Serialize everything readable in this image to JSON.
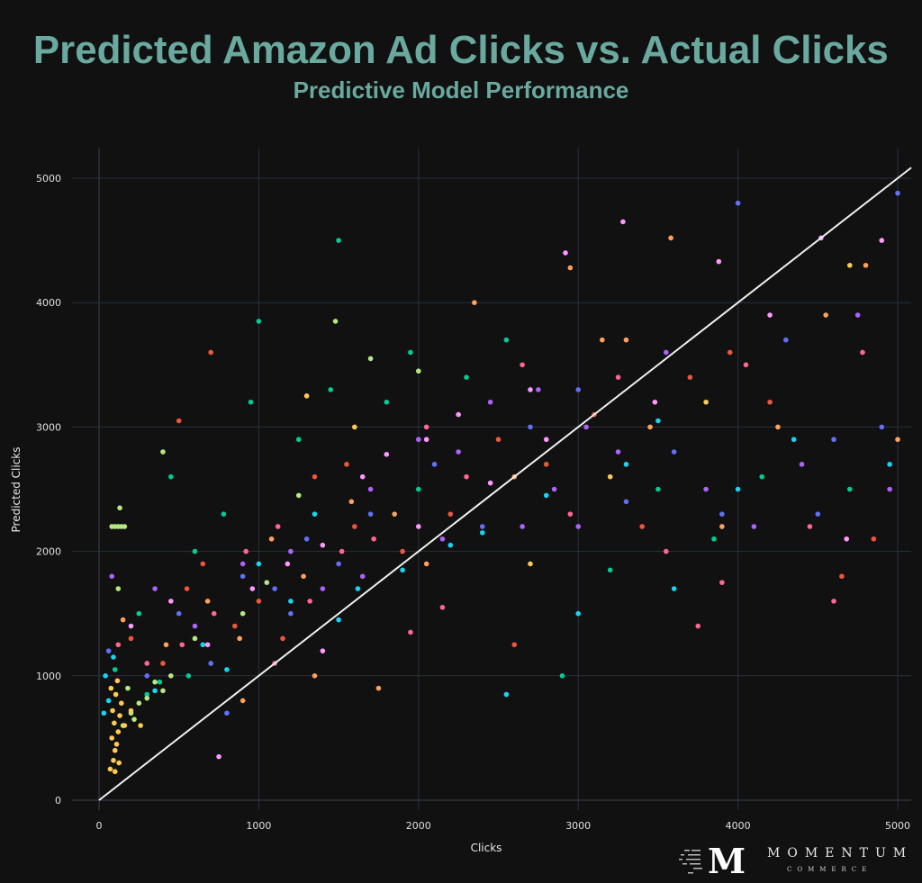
{
  "chart_data": {
    "type": "scatter",
    "title": "Predicted Amazon Ad Clicks vs. Actual Clicks",
    "subtitle": "Predictive Model Performance",
    "xlabel": "Clicks",
    "ylabel": "Predicted Clicks",
    "xlim": [
      -170,
      5085
    ],
    "ylim": [
      -80,
      5240
    ],
    "xticks": [
      "0",
      "1000",
      "2000",
      "3000",
      "4000",
      "5000"
    ],
    "yticks": [
      "0",
      "1000",
      "2000",
      "3000",
      "4000",
      "5000"
    ],
    "grid": true,
    "legend": "none",
    "reference_line": {
      "name": "y = x",
      "color": "#f0f0f0",
      "from": [
        0,
        0
      ],
      "to": [
        5085,
        5085
      ]
    },
    "series": [
      {
        "name": "series-1",
        "color": "#636efa",
        "points": [
          [
            60,
            1200
          ],
          [
            300,
            1000
          ],
          [
            500,
            1500
          ],
          [
            700,
            1100
          ],
          [
            900,
            1800
          ],
          [
            1100,
            1700
          ],
          [
            1300,
            2100
          ],
          [
            1500,
            1900
          ],
          [
            1700,
            2300
          ],
          [
            2100,
            2700
          ],
          [
            2400,
            2200
          ],
          [
            2700,
            3000
          ],
          [
            3000,
            3300
          ],
          [
            3300,
            2400
          ],
          [
            3600,
            2800
          ],
          [
            3900,
            2300
          ],
          [
            4000,
            4800
          ],
          [
            4300,
            3700
          ],
          [
            4600,
            2900
          ],
          [
            4900,
            3000
          ],
          [
            5000,
            4880
          ],
          [
            4500,
            2300
          ],
          [
            1200,
            1500
          ],
          [
            800,
            700
          ]
        ]
      },
      {
        "name": "series-2",
        "color": "#EF553B",
        "points": [
          [
            200,
            1300
          ],
          [
            400,
            1100
          ],
          [
            550,
            1700
          ],
          [
            650,
            1900
          ],
          [
            850,
            1400
          ],
          [
            1000,
            1600
          ],
          [
            1150,
            1300
          ],
          [
            1350,
            2600
          ],
          [
            1600,
            2200
          ],
          [
            1900,
            2000
          ],
          [
            2200,
            2300
          ],
          [
            2500,
            2900
          ],
          [
            2800,
            2700
          ],
          [
            3100,
            3100
          ],
          [
            3400,
            2200
          ],
          [
            3700,
            3400
          ],
          [
            3950,
            3600
          ],
          [
            4200,
            3200
          ],
          [
            4650,
            1800
          ],
          [
            4850,
            2100
          ],
          [
            700,
            3600
          ],
          [
            500,
            3050
          ],
          [
            1550,
            2700
          ],
          [
            2600,
            1250
          ]
        ]
      },
      {
        "name": "series-3",
        "color": "#00cc96",
        "points": [
          [
            100,
            1050
          ],
          [
            250,
            1500
          ],
          [
            450,
            2600
          ],
          [
            600,
            2000
          ],
          [
            780,
            2300
          ],
          [
            950,
            3200
          ],
          [
            1000,
            3850
          ],
          [
            1250,
            2900
          ],
          [
            1450,
            3300
          ],
          [
            1500,
            4500
          ],
          [
            1800,
            3200
          ],
          [
            2000,
            2500
          ],
          [
            2300,
            3400
          ],
          [
            2550,
            3700
          ],
          [
            2900,
            1000
          ],
          [
            3200,
            1850
          ],
          [
            3500,
            2500
          ],
          [
            3850,
            2100
          ],
          [
            4150,
            2600
          ],
          [
            4700,
            2500
          ],
          [
            380,
            950
          ],
          [
            300,
            850
          ],
          [
            560,
            1000
          ],
          [
            1950,
            3600
          ]
        ]
      },
      {
        "name": "series-4",
        "color": "#ab63fa",
        "points": [
          [
            80,
            1800
          ],
          [
            350,
            1700
          ],
          [
            600,
            1400
          ],
          [
            900,
            1900
          ],
          [
            1200,
            2000
          ],
          [
            1400,
            1700
          ],
          [
            1700,
            2500
          ],
          [
            2000,
            2900
          ],
          [
            2250,
            2800
          ],
          [
            2450,
            3200
          ],
          [
            2650,
            2200
          ],
          [
            2850,
            2500
          ],
          [
            3050,
            3000
          ],
          [
            3250,
            2800
          ],
          [
            3550,
            3600
          ],
          [
            3800,
            2500
          ],
          [
            4100,
            2200
          ],
          [
            4400,
            2700
          ],
          [
            4750,
            3900
          ],
          [
            4950,
            2500
          ],
          [
            3000,
            2200
          ],
          [
            2750,
            3300
          ],
          [
            2150,
            2100
          ],
          [
            1650,
            1800
          ]
        ]
      },
      {
        "name": "series-5",
        "color": "#FFA15A",
        "points": [
          [
            150,
            1450
          ],
          [
            420,
            1250
          ],
          [
            680,
            1600
          ],
          [
            880,
            1300
          ],
          [
            1080,
            2100
          ],
          [
            1280,
            1800
          ],
          [
            1580,
            2400
          ],
          [
            1850,
            2300
          ],
          [
            2050,
            1900
          ],
          [
            2350,
            4000
          ],
          [
            2600,
            2600
          ],
          [
            2950,
            4280
          ],
          [
            3150,
            3700
          ],
          [
            3450,
            3000
          ],
          [
            3580,
            4520
          ],
          [
            3900,
            2200
          ],
          [
            4250,
            3000
          ],
          [
            4550,
            3900
          ],
          [
            4800,
            4300
          ],
          [
            5000,
            2900
          ],
          [
            1750,
            900
          ],
          [
            1350,
            1000
          ],
          [
            900,
            800
          ],
          [
            3300,
            3700
          ]
        ]
      },
      {
        "name": "series-6",
        "color": "#19d3f3",
        "points": [
          [
            30,
            700
          ],
          [
            60,
            800
          ],
          [
            90,
            1150
          ],
          [
            40,
            1000
          ],
          [
            350,
            880
          ],
          [
            650,
            1250
          ],
          [
            1000,
            1900
          ],
          [
            1200,
            1600
          ],
          [
            1350,
            2300
          ],
          [
            1620,
            1700
          ],
          [
            1900,
            1850
          ],
          [
            2200,
            2050
          ],
          [
            2550,
            850
          ],
          [
            2800,
            2450
          ],
          [
            3000,
            1500
          ],
          [
            3300,
            2700
          ],
          [
            3600,
            1700
          ],
          [
            4000,
            2500
          ],
          [
            4350,
            2900
          ],
          [
            4950,
            2700
          ],
          [
            2400,
            2150
          ],
          [
            1500,
            1450
          ],
          [
            800,
            1050
          ],
          [
            3500,
            3050
          ]
        ]
      },
      {
        "name": "series-7",
        "color": "#FF6692",
        "points": [
          [
            120,
            1250
          ],
          [
            300,
            1100
          ],
          [
            520,
            1250
          ],
          [
            720,
            1500
          ],
          [
            920,
            2000
          ],
          [
            1120,
            2200
          ],
          [
            1320,
            1600
          ],
          [
            1520,
            2000
          ],
          [
            1720,
            2100
          ],
          [
            2050,
            3000
          ],
          [
            2300,
            2600
          ],
          [
            2650,
            3500
          ],
          [
            2950,
            2300
          ],
          [
            3250,
            3400
          ],
          [
            3550,
            2000
          ],
          [
            3750,
            1400
          ],
          [
            4050,
            3500
          ],
          [
            4450,
            2200
          ],
          [
            4600,
            1600
          ],
          [
            4780,
            3600
          ],
          [
            1950,
            1350
          ],
          [
            1100,
            1100
          ],
          [
            2150,
            1550
          ],
          [
            3900,
            1750
          ]
        ]
      },
      {
        "name": "series-8",
        "color": "#B6E880",
        "points": [
          [
            80,
            2200
          ],
          [
            100,
            2200
          ],
          [
            120,
            2200
          ],
          [
            140,
            2200
          ],
          [
            160,
            2200
          ],
          [
            150,
            600
          ],
          [
            200,
            700
          ],
          [
            250,
            780
          ],
          [
            300,
            820
          ],
          [
            350,
            950
          ],
          [
            400,
            880
          ],
          [
            180,
            900
          ],
          [
            220,
            650
          ],
          [
            450,
            1000
          ],
          [
            120,
            1700
          ],
          [
            600,
            1300
          ],
          [
            900,
            1500
          ],
          [
            1050,
            1750
          ],
          [
            1250,
            2450
          ],
          [
            1480,
            3850
          ],
          [
            1700,
            3550
          ],
          [
            2000,
            3450
          ],
          [
            130,
            2350
          ],
          [
            400,
            2800
          ]
        ]
      },
      {
        "name": "series-9",
        "color": "#FF97FF",
        "points": [
          [
            200,
            1400
          ],
          [
            450,
            1600
          ],
          [
            680,
            1250
          ],
          [
            960,
            1700
          ],
          [
            1180,
            1900
          ],
          [
            1400,
            2050
          ],
          [
            1650,
            2600
          ],
          [
            1800,
            2780
          ],
          [
            2050,
            2900
          ],
          [
            2250,
            3100
          ],
          [
            2450,
            2550
          ],
          [
            2700,
            3300
          ],
          [
            2920,
            4400
          ],
          [
            3280,
            4650
          ],
          [
            3480,
            3200
          ],
          [
            3880,
            4330
          ],
          [
            4200,
            3900
          ],
          [
            4520,
            4520
          ],
          [
            4680,
            2100
          ],
          [
            4900,
            4500
          ],
          [
            750,
            350
          ],
          [
            1400,
            1200
          ],
          [
            2000,
            2200
          ],
          [
            2800,
            2900
          ]
        ]
      },
      {
        "name": "series-10",
        "color": "#FECB52",
        "points": [
          [
            70,
            250
          ],
          [
            90,
            320
          ],
          [
            100,
            400
          ],
          [
            110,
            450
          ],
          [
            80,
            500
          ],
          [
            120,
            550
          ],
          [
            95,
            620
          ],
          [
            130,
            680
          ],
          [
            85,
            720
          ],
          [
            140,
            780
          ],
          [
            105,
            850
          ],
          [
            75,
            900
          ],
          [
            115,
            960
          ],
          [
            125,
            300
          ],
          [
            100,
            230
          ],
          [
            160,
            600
          ],
          [
            200,
            720
          ],
          [
            260,
            600
          ],
          [
            1300,
            3250
          ],
          [
            1600,
            3000
          ],
          [
            2700,
            1900
          ],
          [
            3200,
            2600
          ],
          [
            3800,
            3200
          ],
          [
            4700,
            4300
          ]
        ]
      }
    ]
  }
}
